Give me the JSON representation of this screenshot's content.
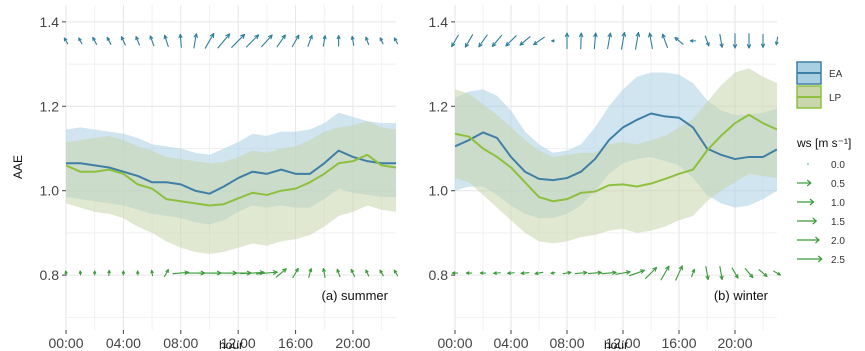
{
  "figure": {
    "ylabel": "AAE",
    "xlabel": "hour",
    "colors": {
      "EA_line": "#3f7fa6",
      "EA_fill": "#a9cfe3",
      "LP_line": "#8ec040",
      "LP_fill": "#c9d6ab",
      "arrow_blue": "#2f7f9f",
      "arrow_green": "#3a9a3a",
      "grid": "#e6e6e6"
    }
  },
  "legend": {
    "series": [
      {
        "label": "EA",
        "line": "#3f7fa6",
        "fill": "#a9cfe3"
      },
      {
        "label": "LP",
        "line": "#8ec040",
        "fill": "#c9d6ab"
      }
    ],
    "ws_title": "ws [m s⁻¹]",
    "ws_values": [
      "0.0",
      "0.5",
      "1.0",
      "1.5",
      "2.0",
      "2.5"
    ]
  },
  "chart_data": [
    {
      "type": "line",
      "panel_label": "(a) summer",
      "xlabel": "hour",
      "ylabel": "AAE",
      "xlim": [
        0,
        23
      ],
      "ylim": [
        0.67,
        1.44
      ],
      "x_ticks": [
        0,
        4,
        8,
        12,
        16,
        20
      ],
      "x_tick_labels": [
        "00:00",
        "04:00",
        "08:00",
        "12:00",
        "16:00",
        "20:00"
      ],
      "y_ticks": [
        0.8,
        1.0,
        1.2,
        1.4
      ],
      "y_tick_labels": [
        "0.8",
        "1.0",
        "1.2",
        "1.4"
      ],
      "grid": true,
      "x": [
        0,
        1,
        2,
        3,
        4,
        5,
        6,
        7,
        8,
        9,
        10,
        11,
        12,
        13,
        14,
        15,
        16,
        17,
        18,
        19,
        20,
        21,
        22,
        23
      ],
      "series": [
        {
          "name": "EA",
          "values": [
            1.065,
            1.065,
            1.06,
            1.055,
            1.045,
            1.035,
            1.02,
            1.02,
            1.015,
            1.0,
            0.993,
            1.01,
            1.03,
            1.045,
            1.04,
            1.05,
            1.04,
            1.04,
            1.065,
            1.095,
            1.08,
            1.07,
            1.065,
            1.065
          ],
          "lower": [
            0.985,
            0.98,
            0.975,
            0.97,
            0.965,
            0.955,
            0.945,
            0.94,
            0.935,
            0.925,
            0.92,
            0.93,
            0.95,
            0.965,
            0.96,
            0.965,
            0.96,
            0.96,
            0.98,
            1.005,
            0.995,
            0.99,
            0.985,
            0.985
          ],
          "upper": [
            1.145,
            1.15,
            1.145,
            1.14,
            1.135,
            1.125,
            1.11,
            1.105,
            1.1,
            1.09,
            1.085,
            1.1,
            1.115,
            1.135,
            1.13,
            1.14,
            1.14,
            1.145,
            1.16,
            1.185,
            1.175,
            1.165,
            1.16,
            1.16
          ]
        },
        {
          "name": "LP",
          "values": [
            1.06,
            1.045,
            1.045,
            1.05,
            1.04,
            1.015,
            1.005,
            0.98,
            0.975,
            0.97,
            0.965,
            0.968,
            0.982,
            0.995,
            0.99,
            1.0,
            1.005,
            1.02,
            1.04,
            1.065,
            1.07,
            1.085,
            1.06,
            1.055
          ],
          "lower": [
            0.97,
            0.96,
            0.95,
            0.945,
            0.935,
            0.915,
            0.9,
            0.88,
            0.865,
            0.855,
            0.85,
            0.855,
            0.865,
            0.875,
            0.87,
            0.88,
            0.885,
            0.895,
            0.915,
            0.94,
            0.95,
            0.965,
            0.955,
            0.95
          ],
          "upper": [
            1.115,
            1.12,
            1.125,
            1.13,
            1.12,
            1.105,
            1.095,
            1.08,
            1.075,
            1.07,
            1.065,
            1.068,
            1.08,
            1.095,
            1.09,
            1.1,
            1.105,
            1.12,
            1.14,
            1.15,
            1.155,
            1.165,
            1.15,
            1.145
          ]
        }
      ],
      "wind": [
        {
          "name": "EA",
          "y": 1.355,
          "speed": [
            0.5,
            0.5,
            0.6,
            0.6,
            0.7,
            0.7,
            0.8,
            0.9,
            1.0,
            1.1,
            1.3,
            1.4,
            1.4,
            1.3,
            1.2,
            1.1,
            1.0,
            0.9,
            0.8,
            0.8,
            0.7,
            0.6,
            0.5,
            0.5
          ],
          "direction_deg": [
            120,
            118,
            118,
            118,
            115,
            112,
            110,
            108,
            95,
            80,
            60,
            50,
            45,
            45,
            48,
            55,
            60,
            70,
            80,
            90,
            100,
            110,
            115,
            118
          ]
        },
        {
          "name": "LP",
          "y": 0.805,
          "speed": [
            0.3,
            0.3,
            0.3,
            0.4,
            0.3,
            0.3,
            0.4,
            0.6,
            1.2,
            1.5,
            1.8,
            2.0,
            2.0,
            1.8,
            1.6,
            1.0,
            0.8,
            0.7,
            0.7,
            0.6,
            0.6,
            0.5,
            0.5,
            0.5
          ],
          "direction_deg": [
            100,
            95,
            90,
            85,
            90,
            95,
            100,
            60,
            5,
            0,
            0,
            0,
            0,
            3,
            5,
            40,
            60,
            75,
            100,
            110,
            115,
            115,
            120,
            120
          ]
        }
      ]
    },
    {
      "type": "line",
      "panel_label": "(b) winter",
      "xlabel": "hour",
      "ylabel": "",
      "xlim": [
        0,
        23
      ],
      "ylim": [
        0.67,
        1.44
      ],
      "x_ticks": [
        0,
        4,
        8,
        12,
        16,
        20
      ],
      "x_tick_labels": [
        "00:00",
        "04:00",
        "08:00",
        "12:00",
        "16:00",
        "20:00"
      ],
      "y_ticks": [
        0.8,
        1.0,
        1.2,
        1.4
      ],
      "y_tick_labels": [
        "0.8",
        "1.0",
        "1.2",
        "1.4"
      ],
      "grid": true,
      "x": [
        0,
        1,
        2,
        3,
        4,
        5,
        6,
        7,
        8,
        9,
        10,
        11,
        12,
        13,
        14,
        15,
        16,
        17,
        18,
        19,
        20,
        21,
        22,
        23
      ],
      "series": [
        {
          "name": "EA",
          "values": [
            1.105,
            1.12,
            1.138,
            1.125,
            1.08,
            1.045,
            1.028,
            1.025,
            1.03,
            1.045,
            1.075,
            1.12,
            1.15,
            1.168,
            1.183,
            1.176,
            1.173,
            1.15,
            1.1,
            1.085,
            1.075,
            1.08,
            1.08,
            1.098
          ],
          "lower": [
            1.0,
            1.01,
            1.01,
            0.99,
            0.965,
            0.945,
            0.935,
            0.935,
            0.945,
            0.965,
            1.0,
            1.04,
            1.065,
            1.075,
            1.08,
            1.07,
            1.06,
            1.03,
            0.99,
            0.97,
            0.96,
            0.965,
            0.98,
            1.0
          ],
          "upper": [
            1.22,
            1.235,
            1.24,
            1.225,
            1.19,
            1.14,
            1.11,
            1.09,
            1.095,
            1.11,
            1.15,
            1.2,
            1.24,
            1.27,
            1.28,
            1.28,
            1.275,
            1.255,
            1.215,
            1.19,
            1.18,
            1.18,
            1.185,
            1.195
          ]
        },
        {
          "name": "LP",
          "values": [
            1.135,
            1.128,
            1.1,
            1.08,
            1.055,
            1.02,
            0.985,
            0.975,
            0.98,
            0.995,
            0.998,
            1.013,
            1.015,
            1.01,
            1.017,
            1.028,
            1.04,
            1.05,
            1.095,
            1.13,
            1.16,
            1.18,
            1.16,
            1.145
          ],
          "lower": [
            1.03,
            1.02,
            0.99,
            0.96,
            0.93,
            0.9,
            0.88,
            0.875,
            0.88,
            0.89,
            0.895,
            0.905,
            0.91,
            0.9,
            0.905,
            0.915,
            0.93,
            0.94,
            0.975,
            1.0,
            1.02,
            1.04,
            1.035,
            1.03
          ],
          "upper": [
            1.24,
            1.23,
            1.205,
            1.18,
            1.15,
            1.12,
            1.095,
            1.08,
            1.085,
            1.09,
            1.09,
            1.11,
            1.115,
            1.11,
            1.12,
            1.13,
            1.15,
            1.17,
            1.21,
            1.25,
            1.28,
            1.29,
            1.27,
            1.255
          ]
        }
      ],
      "wind": [
        {
          "name": "EA",
          "y": 1.355,
          "speed": [
            1.0,
            1.1,
            1.1,
            1.1,
            1.1,
            1.0,
            1.0,
            0.2,
            1.2,
            1.2,
            1.2,
            1.2,
            1.3,
            1.3,
            1.2,
            1.1,
            0.8,
            0.4,
            0.8,
            1.0,
            1.1,
            1.1,
            1.0,
            0.6
          ],
          "direction_deg": [
            240,
            240,
            235,
            230,
            225,
            220,
            215,
            180,
            90,
            88,
            85,
            80,
            80,
            80,
            100,
            110,
            140,
            180,
            290,
            280,
            270,
            270,
            270,
            260
          ]
        },
        {
          "name": "LP",
          "y": 0.805,
          "speed": [
            0.4,
            0.4,
            0.4,
            0.5,
            0.5,
            0.6,
            0.6,
            0.3,
            0.6,
            0.9,
            1.0,
            1.1,
            1.1,
            1.2,
            1.2,
            1.2,
            1.2,
            0.6,
            1.0,
            1.0,
            0.9,
            0.9,
            0.8,
            0.6
          ],
          "direction_deg": [
            180,
            180,
            180,
            185,
            185,
            185,
            190,
            190,
            10,
            5,
            5,
            5,
            10,
            20,
            45,
            60,
            65,
            70,
            280,
            280,
            300,
            310,
            320,
            330
          ]
        }
      ]
    }
  ]
}
